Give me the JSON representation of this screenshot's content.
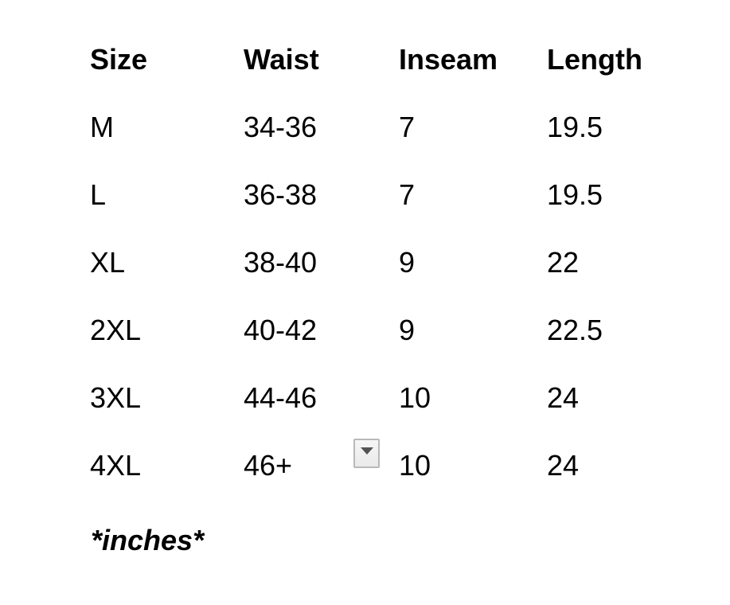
{
  "table": {
    "headers": [
      "Size",
      "Waist",
      "Inseam",
      "Length"
    ],
    "rows": [
      {
        "size": "M",
        "waist": "34-36",
        "inseam": "7",
        "length": "19.5"
      },
      {
        "size": "L",
        "waist": "36-38",
        "inseam": "7",
        "length": "19.5"
      },
      {
        "size": "XL",
        "waist": "38-40",
        "inseam": "9",
        "length": "22"
      },
      {
        "size": "2XL",
        "waist": "40-42",
        "inseam": "9",
        "length": "22.5"
      },
      {
        "size": "3XL",
        "waist": "44-46",
        "inseam": "10",
        "length": "24"
      },
      {
        "size": "4XL",
        "waist": "46+",
        "inseam": "10",
        "length": "24"
      }
    ]
  },
  "note": "*inches*",
  "dropdown": {
    "icon": "triangle-down",
    "triangle_color": "#535353",
    "border_color": "#b9b9b9"
  }
}
